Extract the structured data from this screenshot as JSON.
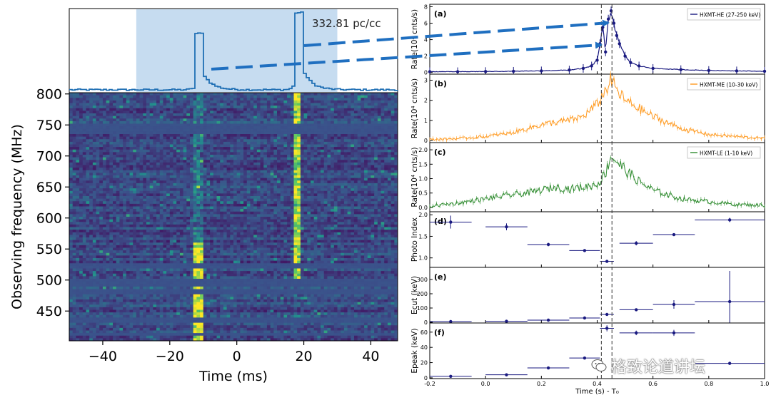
{
  "chart_data": [
    {
      "type": "heatmap",
      "name": "dynamic spectrum",
      "dm_label": "332.81 pc/cc",
      "xlabel": "Time (ms)",
      "ylabel": "Observing frequency (MHz)",
      "xlim": [
        -50,
        48
      ],
      "ylim": [
        402,
        802
      ],
      "xticks": [
        -40,
        -20,
        0,
        20,
        40
      ],
      "yticks": [
        450,
        500,
        550,
        600,
        650,
        700,
        750,
        800
      ],
      "shaded_window_ms": [
        -30,
        30
      ],
      "burst_times_ms": [
        -11.5,
        18
      ],
      "profile_peaks": [
        0.73,
        1.0
      ]
    },
    {
      "type": "line",
      "panel": "(a)",
      "legend": "HXMT-HE (27-250 keV)",
      "color": "#1a1a80",
      "ylabel": "Rate(10⁴ cnts/s)",
      "ylim": [
        -0.2,
        8.3
      ],
      "yticks": [
        0,
        2,
        4,
        6,
        8
      ],
      "x": [
        -0.2,
        -0.1,
        0.0,
        0.1,
        0.2,
        0.3,
        0.35,
        0.38,
        0.4,
        0.41,
        0.42,
        0.43,
        0.44,
        0.45,
        0.46,
        0.47,
        0.48,
        0.5,
        0.52,
        0.55,
        0.6,
        0.7,
        0.8,
        0.9,
        1.0
      ],
      "values": [
        0.1,
        0.1,
        0.12,
        0.15,
        0.2,
        0.3,
        0.5,
        0.8,
        1.5,
        3.5,
        5.5,
        2.5,
        6.5,
        7.5,
        6.0,
        4.5,
        3.5,
        2.0,
        1.2,
        0.8,
        0.5,
        0.35,
        0.25,
        0.2,
        0.15
      ]
    },
    {
      "type": "line",
      "panel": "(b)",
      "legend": "HXMT-ME (10-30 keV)",
      "color": "#ff9a20",
      "ylabel": "Rate(10⁴ cnts/s)",
      "ylim": [
        -0.1,
        3.3
      ],
      "yticks": [
        0,
        1,
        2,
        3
      ],
      "x": [
        -0.2,
        -0.1,
        0.0,
        0.1,
        0.15,
        0.2,
        0.25,
        0.3,
        0.35,
        0.4,
        0.43,
        0.45,
        0.47,
        0.5,
        0.55,
        0.6,
        0.7,
        0.8,
        0.9,
        1.0
      ],
      "values": [
        0.05,
        0.1,
        0.2,
        0.4,
        0.6,
        0.8,
        0.9,
        1.0,
        1.2,
        1.8,
        2.5,
        3.0,
        2.5,
        2.0,
        1.6,
        1.2,
        0.6,
        0.3,
        0.2,
        0.1
      ]
    },
    {
      "type": "line",
      "panel": "(c)",
      "legend": "HXMT-LE (1-10 keV)",
      "color": "#2e8b2e",
      "ylabel": "Rate(10⁴ cnts/s)",
      "ylim": [
        -0.15,
        2.25
      ],
      "yticks": [
        0.0,
        0.5,
        1.0,
        1.5,
        2.0
      ],
      "x": [
        -0.2,
        -0.1,
        0.0,
        0.1,
        0.15,
        0.2,
        0.25,
        0.3,
        0.35,
        0.4,
        0.43,
        0.45,
        0.47,
        0.5,
        0.55,
        0.6,
        0.7,
        0.8,
        0.9,
        1.0
      ],
      "values": [
        0.05,
        0.15,
        0.3,
        0.45,
        0.5,
        0.6,
        0.7,
        0.65,
        0.7,
        0.8,
        1.2,
        1.8,
        1.6,
        1.3,
        0.9,
        0.6,
        0.3,
        0.2,
        0.1,
        0.08
      ]
    },
    {
      "type": "scatter",
      "panel": "(d)",
      "ylabel": "Photo Index",
      "ylim": [
        0.78,
        2.07
      ],
      "yticks": [
        1.0,
        1.5,
        2.0
      ],
      "points": [
        {
          "x": -0.125,
          "xerr": 0.075,
          "y": 1.83,
          "yerr": 0.15
        },
        {
          "x": 0.075,
          "xerr": 0.075,
          "y": 1.72,
          "yerr": 0.08
        },
        {
          "x": 0.225,
          "xerr": 0.075,
          "y": 1.31,
          "yerr": 0.04
        },
        {
          "x": 0.355,
          "xerr": 0.055,
          "y": 1.17,
          "yerr": 0.03
        },
        {
          "x": 0.435,
          "xerr": 0.025,
          "y": 0.92,
          "yerr": 0.03
        },
        {
          "x": 0.54,
          "xerr": 0.06,
          "y": 1.34,
          "yerr": 0.05
        },
        {
          "x": 0.675,
          "xerr": 0.075,
          "y": 1.54,
          "yerr": 0.03
        },
        {
          "x": 0.875,
          "xerr": 0.125,
          "y": 1.88,
          "yerr": 0.05
        }
      ]
    },
    {
      "type": "scatter",
      "panel": "(e)",
      "ylabel": "Ecut (keV)",
      "ylim": [
        -5,
        385
      ],
      "yticks": [
        0,
        100,
        200,
        300
      ],
      "points": [
        {
          "x": -0.125,
          "xerr": 0.075,
          "y": 5,
          "yerr": 3
        },
        {
          "x": 0.075,
          "xerr": 0.075,
          "y": 7,
          "yerr": 3
        },
        {
          "x": 0.225,
          "xerr": 0.075,
          "y": 15,
          "yerr": 3
        },
        {
          "x": 0.355,
          "xerr": 0.055,
          "y": 30,
          "yerr": 3
        },
        {
          "x": 0.435,
          "xerr": 0.025,
          "y": 55,
          "yerr": 5
        },
        {
          "x": 0.54,
          "xerr": 0.06,
          "y": 88,
          "yerr": 8
        },
        {
          "x": 0.675,
          "xerr": 0.075,
          "y": 125,
          "yerr": 30
        },
        {
          "x": 0.875,
          "xerr": 0.125,
          "y": 145,
          "yerr": 215
        }
      ]
    },
    {
      "type": "scatter",
      "panel": "(f)",
      "ylabel": "Epeak (keV)",
      "xlabel": "Time (s) - T₀",
      "ylim": [
        -1,
        72
      ],
      "yticks": [
        0,
        20,
        40,
        60
      ],
      "xlim": [
        -0.2,
        1.0
      ],
      "xticks": [
        "-0.2",
        "0.0",
        "0.2",
        "0.4",
        "0.6",
        "0.8",
        "1.0"
      ],
      "points": [
        {
          "x": -0.125,
          "xerr": 0.075,
          "y": 2,
          "yerr": 1
        },
        {
          "x": 0.075,
          "xerr": 0.075,
          "y": 4,
          "yerr": 1
        },
        {
          "x": 0.225,
          "xerr": 0.075,
          "y": 13,
          "yerr": 1
        },
        {
          "x": 0.355,
          "xerr": 0.055,
          "y": 26,
          "yerr": 1
        },
        {
          "x": 0.435,
          "xerr": 0.025,
          "y": 65,
          "yerr": 4
        },
        {
          "x": 0.54,
          "xerr": 0.06,
          "y": 59,
          "yerr": 3
        },
        {
          "x": 0.675,
          "xerr": 0.075,
          "y": 59,
          "yerr": 4
        },
        {
          "x": 0.875,
          "xerr": 0.125,
          "y": 19,
          "yerr": 2
        }
      ],
      "vlines_s": [
        0.415,
        0.453
      ]
    }
  ],
  "watermark": {
    "text": "格致论道讲坛"
  }
}
